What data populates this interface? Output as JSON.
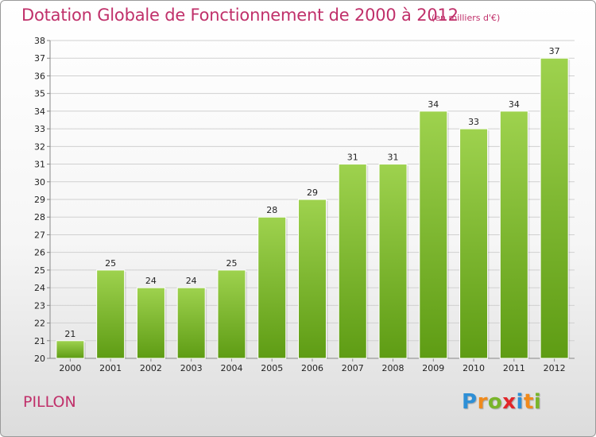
{
  "header": {
    "title": "Dotation Globale de Fonctionnement de 2000 à 2012",
    "unit": "(en milliers d'€)"
  },
  "footer": {
    "commune": "PILLON",
    "logo_letters": [
      {
        "char": "P",
        "color": "#2e8fd6"
      },
      {
        "char": "r",
        "color": "#f08a1c"
      },
      {
        "char": "o",
        "color": "#79b52a"
      },
      {
        "char": "x",
        "color": "#e2262a"
      },
      {
        "char": "i",
        "color": "#2e8fd6"
      },
      {
        "char": "t",
        "color": "#f08a1c"
      },
      {
        "char": "i",
        "color": "#79b52a"
      }
    ]
  },
  "colors": {
    "accent": "#c0306a",
    "bar_light": "#9ed24e",
    "bar_dark": "#5e9c14",
    "grid": "#d0d0d0",
    "axis_text": "#222222"
  },
  "chart_data": {
    "type": "bar",
    "title": "Dotation Globale de Fonctionnement de 2000 à 2012",
    "xlabel": "",
    "ylabel": "",
    "categories": [
      "2000",
      "2001",
      "2002",
      "2003",
      "2004",
      "2005",
      "2006",
      "2007",
      "2008",
      "2009",
      "2010",
      "2011",
      "2012"
    ],
    "values": [
      21,
      25,
      24,
      24,
      25,
      28,
      29,
      31,
      31,
      34,
      33,
      34,
      37
    ],
    "ylim": [
      20,
      38
    ],
    "yticks": [
      20,
      21,
      22,
      23,
      24,
      25,
      26,
      27,
      28,
      29,
      30,
      31,
      32,
      33,
      34,
      35,
      36,
      37,
      38
    ],
    "grid": true,
    "legend": "none"
  }
}
